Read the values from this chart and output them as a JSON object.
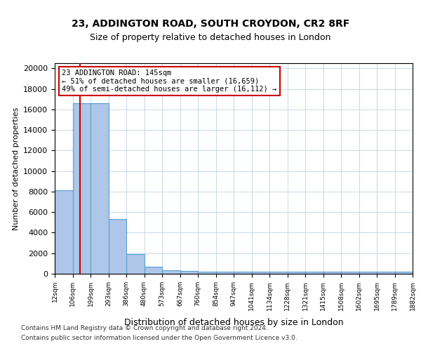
{
  "title1": "23, ADDINGTON ROAD, SOUTH CROYDON, CR2 8RF",
  "title2": "Size of property relative to detached houses in London",
  "xlabel": "Distribution of detached houses by size in London",
  "ylabel": "Number of detached properties",
  "bin_labels": [
    "12sqm",
    "106sqm",
    "199sqm",
    "293sqm",
    "386sqm",
    "480sqm",
    "573sqm",
    "667sqm",
    "760sqm",
    "854sqm",
    "947sqm",
    "1041sqm",
    "1134sqm",
    "1228sqm",
    "1321sqm",
    "1415sqm",
    "1508sqm",
    "1602sqm",
    "1695sqm",
    "1789sqm",
    "1882sqm"
  ],
  "bar_values": [
    8100,
    16600,
    16600,
    5300,
    1900,
    700,
    350,
    300,
    200,
    200,
    200,
    200,
    200,
    200,
    200,
    200,
    200,
    200,
    200,
    200
  ],
  "bar_color": "#aec6e8",
  "bar_edge_color": "#5a9fd4",
  "annotation_text": "23 ADDINGTON ROAD: 145sqm\n← 51% of detached houses are smaller (16,659)\n49% of semi-detached houses are larger (16,112) →",
  "annotation_box_color": "#ffffff",
  "annotation_edge_color": "#cc0000",
  "vline_color": "#cc0000",
  "ylim": [
    0,
    20500
  ],
  "yticks": [
    0,
    2000,
    4000,
    6000,
    8000,
    10000,
    12000,
    14000,
    16000,
    18000,
    20000
  ],
  "footer_line1": "Contains HM Land Registry data © Crown copyright and database right 2024.",
  "footer_line2": "Contains public sector information licensed under the Open Government Licence v3.0.",
  "bg_color": "#ffffff",
  "grid_color": "#c8d8e8"
}
